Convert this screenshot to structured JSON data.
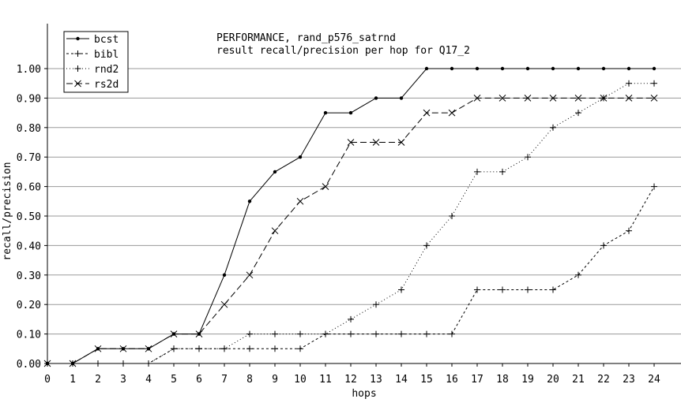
{
  "chart_data": {
    "type": "line",
    "title": "PERFORMANCE, rand_p576_satrnd",
    "subtitle": "result recall/precision per hop for Q17_2",
    "xlabel": "hops",
    "ylabel": "recall/precision",
    "xlim": [
      0,
      24
    ],
    "ylim": [
      0,
      1.0
    ],
    "grid": true,
    "legend_position": "top-left",
    "x": [
      0,
      1,
      2,
      3,
      4,
      5,
      6,
      7,
      8,
      9,
      10,
      11,
      12,
      13,
      14,
      15,
      16,
      17,
      18,
      19,
      20,
      21,
      22,
      23,
      24
    ],
    "x_ticks": [
      "0",
      "1",
      "2",
      "3",
      "4",
      "5",
      "6",
      "7",
      "8",
      "9",
      "10",
      "11",
      "12",
      "13",
      "14",
      "15",
      "16",
      "17",
      "18",
      "19",
      "20",
      "21",
      "22",
      "23",
      "24"
    ],
    "y_ticks": [
      "0.00",
      "0.10",
      "0.20",
      "0.30",
      "0.40",
      "0.50",
      "0.60",
      "0.70",
      "0.80",
      "0.90",
      "1.00"
    ],
    "series": [
      {
        "name": "bcst",
        "marker": "dot",
        "dash": "",
        "values": [
          0,
          0,
          0.05,
          0.05,
          0.05,
          0.1,
          0.1,
          0.3,
          0.55,
          0.65,
          0.7,
          0.85,
          0.85,
          0.9,
          0.9,
          1.0,
          1.0,
          1.0,
          1.0,
          1.0,
          1.0,
          1.0,
          1.0,
          1.0,
          1.0
        ]
      },
      {
        "name": "bibl",
        "marker": "plus",
        "dash": "3,3",
        "values": [
          0,
          0,
          0,
          0,
          0,
          0.05,
          0.05,
          0.05,
          0.05,
          0.05,
          0.05,
          0.1,
          0.1,
          0.1,
          0.1,
          0.1,
          0.1,
          0.25,
          0.25,
          0.25,
          0.25,
          0.3,
          0.4,
          0.45,
          0.6
        ]
      },
      {
        "name": "rnd2",
        "marker": "plus",
        "dash": "1,3",
        "values": [
          0,
          0,
          0,
          0,
          0,
          0.05,
          0.05,
          0.05,
          0.1,
          0.1,
          0.1,
          0.1,
          0.15,
          0.2,
          0.25,
          0.4,
          0.5,
          0.65,
          0.65,
          0.7,
          0.8,
          0.85,
          0.9,
          0.95,
          0.95
        ]
      },
      {
        "name": "rs2d",
        "marker": "cross",
        "dash": "8,4",
        "values": [
          0,
          0,
          0.05,
          0.05,
          0.05,
          0.1,
          0.1,
          0.2,
          0.3,
          0.45,
          0.55,
          0.6,
          0.75,
          0.75,
          0.75,
          0.85,
          0.85,
          0.9,
          0.9,
          0.9,
          0.9,
          0.9,
          0.9,
          0.9,
          0.9
        ]
      }
    ]
  }
}
